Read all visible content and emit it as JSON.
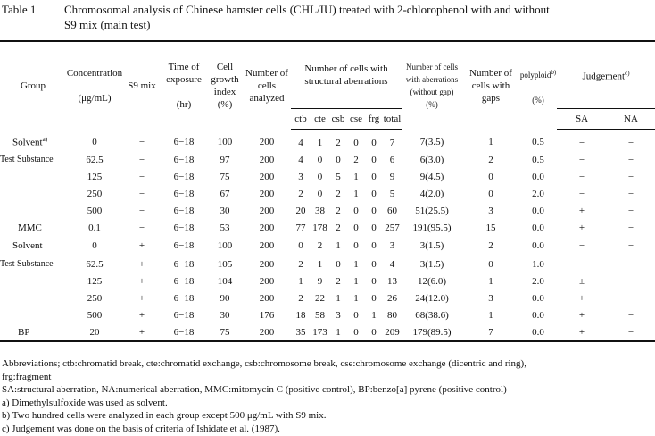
{
  "title": {
    "label": "Table 1",
    "text_line1": "Chromosomal analysis of Chinese hamster cells (CHL/IU) treated with 2-chlorophenol with and without",
    "text_line2": "S9 mix (main test)"
  },
  "headers": {
    "group": "Group",
    "concentration": "Concentration",
    "concentration_unit": "(μg/mL)",
    "s9": "S9 mix",
    "time": "Time of exposure",
    "time_unit": "(hr)",
    "growth": "Cell growth index",
    "growth_unit": "(%)",
    "analyzed": "Number of cells analyzed",
    "structural": "Number of cells with structural aberrations",
    "sub": [
      "ctb",
      "cte",
      "csb",
      "cse",
      "frg",
      "total"
    ],
    "with_aberr": "Number of cells with aberrations (without gap)",
    "with_aberr_unit": "(%)",
    "gaps": "Number of cells with gaps",
    "polyploid": "polyploid",
    "polyploid_sup": "b)",
    "polyploid_unit": "(%)",
    "judgement": "Judgement",
    "judgement_sup": "c)",
    "sa": "SA",
    "na": "NA"
  },
  "rows_without_s9": [
    {
      "group": "Solvent",
      "group_sup": "a)",
      "conc": "0",
      "s9": "−",
      "time": "6−18",
      "growth": "100",
      "analyzed": "200",
      "ctb": "4",
      "cte": "1",
      "csb": "2",
      "cse": "0",
      "frg": "0",
      "total": "7",
      "aberr": "7(3.5)",
      "gaps": "1",
      "poly": "0.5",
      "sa": "−",
      "na": "−"
    },
    {
      "group": "Test Substance",
      "conc": "62.5",
      "s9": "−",
      "time": "6−18",
      "growth": "97",
      "analyzed": "200",
      "ctb": "4",
      "cte": "0",
      "csb": "0",
      "cse": "2",
      "frg": "0",
      "total": "6",
      "aberr": "6(3.0)",
      "gaps": "2",
      "poly": "0.5",
      "sa": "−",
      "na": "−"
    },
    {
      "group": "",
      "conc": "125",
      "s9": "−",
      "time": "6−18",
      "growth": "75",
      "analyzed": "200",
      "ctb": "3",
      "cte": "0",
      "csb": "5",
      "cse": "1",
      "frg": "0",
      "total": "9",
      "aberr": "9(4.5)",
      "gaps": "0",
      "poly": "0.0",
      "sa": "−",
      "na": "−"
    },
    {
      "group": "",
      "conc": "250",
      "s9": "−",
      "time": "6−18",
      "growth": "67",
      "analyzed": "200",
      "ctb": "2",
      "cte": "0",
      "csb": "2",
      "cse": "1",
      "frg": "0",
      "total": "5",
      "aberr": "4(2.0)",
      "gaps": "0",
      "poly": "2.0",
      "sa": "−",
      "na": "−"
    },
    {
      "group": "",
      "conc": "500",
      "s9": "−",
      "time": "6−18",
      "growth": "30",
      "analyzed": "200",
      "ctb": "20",
      "cte": "38",
      "csb": "2",
      "cse": "0",
      "frg": "0",
      "total": "60",
      "aberr": "51(25.5)",
      "gaps": "3",
      "poly": "0.0",
      "sa": "+",
      "na": "−"
    },
    {
      "group": "MMC",
      "conc": "0.1",
      "s9": "−",
      "time": "6−18",
      "growth": "53",
      "analyzed": "200",
      "ctb": "77",
      "cte": "178",
      "csb": "2",
      "cse": "0",
      "frg": "0",
      "total": "257",
      "aberr": "191(95.5)",
      "gaps": "15",
      "poly": "0.0",
      "sa": "+",
      "na": "−"
    }
  ],
  "rows_with_s9": [
    {
      "group": "Solvent",
      "conc": "0",
      "s9": "+",
      "time": "6−18",
      "growth": "100",
      "analyzed": "200",
      "ctb": "0",
      "cte": "2",
      "csb": "1",
      "cse": "0",
      "frg": "0",
      "total": "3",
      "aberr": "3(1.5)",
      "gaps": "2",
      "poly": "0.0",
      "sa": "−",
      "na": "−"
    },
    {
      "group": "Test Substance",
      "conc": "62.5",
      "s9": "+",
      "time": "6−18",
      "growth": "105",
      "analyzed": "200",
      "ctb": "2",
      "cte": "1",
      "csb": "0",
      "cse": "1",
      "frg": "0",
      "total": "4",
      "aberr": "3(1.5)",
      "gaps": "0",
      "poly": "1.0",
      "sa": "−",
      "na": "−"
    },
    {
      "group": "",
      "conc": "125",
      "s9": "+",
      "time": "6−18",
      "growth": "104",
      "analyzed": "200",
      "ctb": "1",
      "cte": "9",
      "csb": "2",
      "cse": "1",
      "frg": "0",
      "total": "13",
      "aberr": "12(6.0)",
      "gaps": "1",
      "poly": "2.0",
      "sa": "±",
      "na": "−"
    },
    {
      "group": "",
      "conc": "250",
      "s9": "+",
      "time": "6−18",
      "growth": "90",
      "analyzed": "200",
      "ctb": "2",
      "cte": "22",
      "csb": "1",
      "cse": "1",
      "frg": "0",
      "total": "26",
      "aberr": "24(12.0)",
      "gaps": "3",
      "poly": "0.0",
      "sa": "+",
      "na": "−"
    },
    {
      "group": "",
      "conc": "500",
      "s9": "+",
      "time": "6−18",
      "growth": "30",
      "analyzed": "176",
      "ctb": "18",
      "cte": "58",
      "csb": "3",
      "cse": "0",
      "frg": "1",
      "total": "80",
      "aberr": "68(38.6)",
      "gaps": "1",
      "poly": "0.0",
      "sa": "+",
      "na": "−"
    },
    {
      "group": "BP",
      "conc": "20",
      "s9": "+",
      "time": "6−18",
      "growth": "75",
      "analyzed": "200",
      "ctb": "35",
      "cte": "173",
      "csb": "1",
      "cse": "0",
      "frg": "0",
      "total": "209",
      "aberr": "179(89.5)",
      "gaps": "7",
      "poly": "0.0",
      "sa": "+",
      "na": "−"
    }
  ],
  "notes": [
    "Abbreviations; ctb:chromatid break, cte:chromatid exchange, csb:chromosome break, cse:chromosome exchange (dicentric and ring),",
    "frg:fragment",
    "SA:structural aberration, NA:numerical aberration, MMC:mitomycin C (positive control), BP:benzo[a] pyrene (positive control)",
    "a) Dimethylsulfoxide was used as solvent.",
    "b) Two hundred cells were analyzed in each group except 500 μg/mL with S9 mix.",
    "c) Judgement was done on the basis of criteria of Ishidate et al. (1987)."
  ]
}
